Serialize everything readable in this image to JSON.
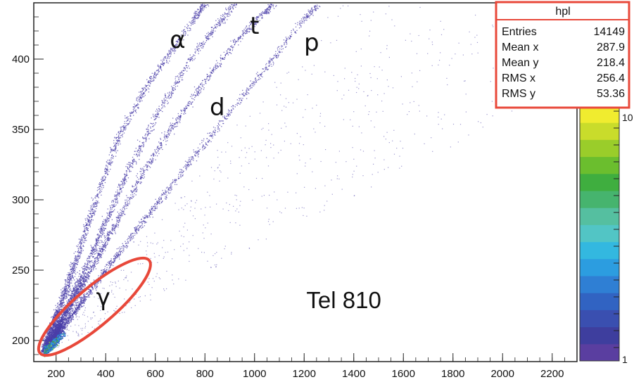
{
  "chart_data": {
    "type": "scatter",
    "title": "",
    "xlabel": "",
    "ylabel": "",
    "xlim": [
      110,
      2300
    ],
    "ylim": [
      185,
      440
    ],
    "x_ticks": [
      200,
      400,
      600,
      800,
      1000,
      1200,
      1400,
      1600,
      1800,
      2000,
      2200
    ],
    "y_ticks": [
      200,
      250,
      300,
      350,
      400
    ],
    "grid": false,
    "series": [
      {
        "name": "p",
        "points": [
          [
            150,
            192
          ],
          [
            220,
            208
          ],
          [
            320,
            232
          ],
          [
            450,
            262
          ],
          [
            600,
            296
          ],
          [
            750,
            330
          ],
          [
            900,
            363
          ],
          [
            1050,
            395
          ],
          [
            1180,
            425
          ],
          [
            1250,
            438
          ]
        ]
      },
      {
        "name": "d",
        "points": [
          [
            150,
            192
          ],
          [
            220,
            212
          ],
          [
            320,
            245
          ],
          [
            430,
            280
          ],
          [
            550,
            320
          ],
          [
            680,
            355
          ],
          [
            800,
            385
          ],
          [
            920,
            412
          ],
          [
            1020,
            430
          ],
          [
            1080,
            440
          ]
        ]
      },
      {
        "name": "t",
        "points": [
          [
            150,
            193
          ],
          [
            220,
            215
          ],
          [
            300,
            245
          ],
          [
            400,
            285
          ],
          [
            500,
            325
          ],
          [
            620,
            365
          ],
          [
            740,
            400
          ],
          [
            850,
            425
          ],
          [
            920,
            440
          ]
        ]
      },
      {
        "name": "α",
        "points": [
          [
            150,
            195
          ],
          [
            210,
            222
          ],
          [
            280,
            258
          ],
          [
            360,
            300
          ],
          [
            450,
            345
          ],
          [
            560,
            380
          ],
          [
            660,
            405
          ],
          [
            760,
            430
          ],
          [
            800,
            440
          ]
        ]
      }
    ],
    "annotations": [
      {
        "text": "α",
        "x": 690,
        "y": 408
      },
      {
        "text": "t",
        "x": 1000,
        "y": 418
      },
      {
        "text": "p",
        "x": 1230,
        "y": 406
      },
      {
        "text": "d",
        "x": 850,
        "y": 360
      },
      {
        "text": "γ",
        "x": 390,
        "y": 225
      },
      {
        "text": "Tel 810",
        "x": 1360,
        "y": 223
      }
    ],
    "gamma_region": {
      "label": "γ",
      "from": [
        135,
        191
      ],
      "to": [
        575,
        257
      ]
    },
    "colorbar": {
      "scale": "log",
      "min_label": "1",
      "max_label": "10",
      "colors": [
        "#5a3ea0",
        "#3e3e9e",
        "#3a4fb0",
        "#3163c2",
        "#2f7fd4",
        "#2c9de0",
        "#33b8e0",
        "#52c5c5",
        "#55bfa0",
        "#46b46e",
        "#3fae3f",
        "#6bbe2e",
        "#9acd2a",
        "#c9dc2b",
        "#f0ec2f"
      ]
    },
    "stats_box": {
      "title": "hpl",
      "rows": [
        {
          "label": "Entries",
          "value": "14149"
        },
        {
          "label": "Mean x",
          "value": "287.9"
        },
        {
          "label": "Mean y",
          "value": "218.4"
        },
        {
          "label": "RMS x",
          "value": "256.4"
        },
        {
          "label": "RMS y",
          "value": "53.36"
        }
      ]
    },
    "colors": {
      "points": "#4b3fa8",
      "highlight": "#e8483a",
      "axis": "#222222"
    }
  }
}
